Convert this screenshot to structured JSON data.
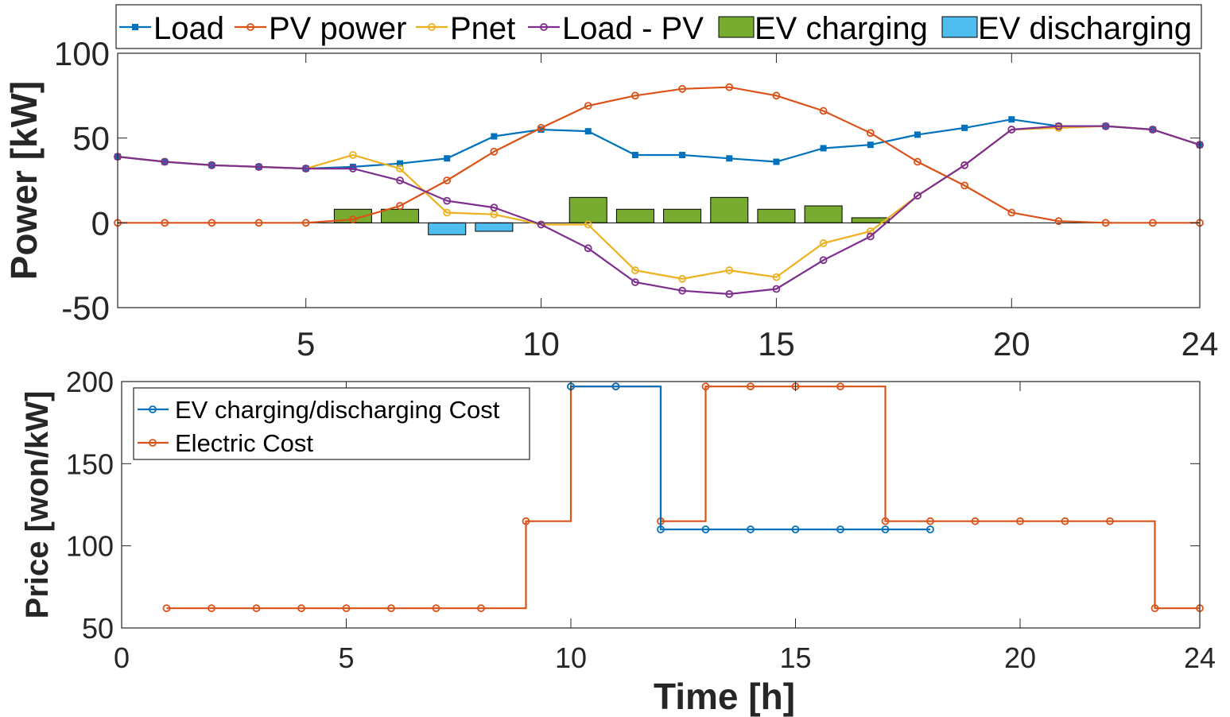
{
  "colors": {
    "load": "#0072BD",
    "pv": "#D95319",
    "pnet": "#EDB120",
    "load_minus_pv": "#7E2F8E",
    "ev_charging": "#77AC30",
    "ev_discharging": "#4DBEEE",
    "ev_cost": "#0072BD",
    "electric_cost": "#D95319"
  },
  "chart_data": [
    {
      "type": "line",
      "title": "",
      "xlabel": "",
      "ylabel": "Power [kW]",
      "xlim": [
        1,
        24
      ],
      "ylim": [
        -50,
        100
      ],
      "xticks": [
        5,
        10,
        15,
        20,
        24
      ],
      "yticks": [
        -50,
        0,
        50,
        100
      ],
      "legend_position": "top-outside",
      "x": [
        1,
        2,
        3,
        4,
        5,
        6,
        7,
        8,
        9,
        10,
        11,
        12,
        13,
        14,
        15,
        16,
        17,
        18,
        19,
        20,
        21,
        22,
        23,
        24
      ],
      "series": [
        {
          "name": "Load",
          "kind": "line",
          "marker": "square",
          "values": [
            39,
            36,
            34,
            33,
            32,
            33,
            35,
            38,
            51,
            55,
            54,
            40,
            40,
            38,
            36,
            44,
            46,
            52,
            56,
            61,
            57,
            57,
            55,
            46
          ]
        },
        {
          "name": "PV power",
          "kind": "line",
          "marker": "circle",
          "values": [
            0,
            0,
            0,
            0,
            0,
            2,
            10,
            25,
            42,
            56,
            69,
            75,
            79,
            80,
            75,
            66,
            53,
            36,
            22,
            6,
            1,
            0,
            0,
            0
          ]
        },
        {
          "name": "Pnet",
          "kind": "line",
          "marker": "circle",
          "values": [
            39,
            36,
            34,
            33,
            32,
            40,
            32,
            6,
            5,
            -1,
            -1,
            -28,
            -33,
            -28,
            -32,
            -12,
            -5,
            16,
            34,
            55,
            56,
            57,
            55,
            46
          ]
        },
        {
          "name": "Load - PV",
          "kind": "line",
          "marker": "circle",
          "values": [
            39,
            36,
            34,
            33,
            32,
            32,
            25,
            13,
            9,
            -1,
            -15,
            -35,
            -40,
            -42,
            -39,
            -22,
            -8,
            16,
            34,
            55,
            57,
            57,
            55,
            46
          ]
        },
        {
          "name": "EV charging",
          "kind": "bar",
          "x": [
            6,
            7,
            11,
            12,
            13,
            14,
            15,
            16,
            17
          ],
          "values": [
            8,
            8,
            15,
            8,
            8,
            15,
            8,
            10,
            3
          ]
        },
        {
          "name": "EV discharging",
          "kind": "bar",
          "x": [
            8,
            9
          ],
          "values": [
            -7,
            -5
          ]
        }
      ]
    },
    {
      "type": "line",
      "title": "",
      "xlabel": "Time [h]",
      "ylabel": "Price [won/kW]",
      "xlim": [
        0,
        24
      ],
      "ylim": [
        50,
        200
      ],
      "xticks": [
        0,
        5,
        10,
        15,
        20,
        24
      ],
      "yticks": [
        50,
        100,
        150,
        200
      ],
      "legend_position": "top-left",
      "series": [
        {
          "name": "EV charging/discharging Cost",
          "kind": "stairs",
          "marker": "circle",
          "x": [
            10,
            11,
            12,
            13,
            14,
            15,
            16,
            17,
            18
          ],
          "values": [
            197,
            197,
            110,
            110,
            110,
            110,
            110,
            110,
            110
          ]
        },
        {
          "name": "Electric Cost",
          "kind": "stairs",
          "marker": "circle",
          "x": [
            1,
            2,
            3,
            4,
            5,
            6,
            7,
            8,
            9,
            10,
            11,
            12,
            13,
            14,
            15,
            16,
            17,
            18,
            19,
            20,
            21,
            22,
            23,
            24
          ],
          "values": [
            62,
            62,
            62,
            62,
            62,
            62,
            62,
            62,
            115,
            197,
            197,
            115,
            197,
            197,
            197,
            197,
            115,
            115,
            115,
            115,
            115,
            115,
            62,
            62
          ]
        }
      ]
    }
  ]
}
